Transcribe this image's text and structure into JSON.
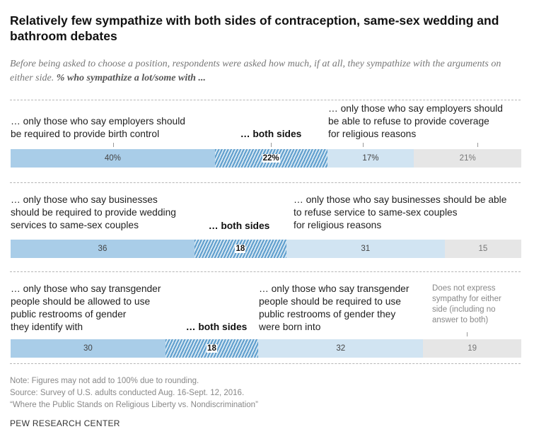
{
  "title": "Relatively few sympathize with both sides of contraception, same-sex wedding and bathroom debates",
  "subtitle_plain": "Before being asked to choose a position, respondents were asked how much, if at all, they sympathize with the arguments on either side.",
  "subtitle_bold": "% who sympathize a lot/some with ...",
  "chart_data": {
    "type": "bar",
    "stacked": true,
    "orientation": "horizontal",
    "title": "Relatively few sympathize with both sides of contraception, same-sex wedding and bathroom debates",
    "categories": [
      "contraception",
      "same-sex wedding",
      "bathroom"
    ],
    "series": [
      {
        "name": "only those who say employers should be required to provide birth control / businesses should be required to provide wedding services / transgender people should be allowed to use restroom of gender they identify with",
        "values": [
          40,
          36,
          30
        ]
      },
      {
        "name": "both sides",
        "values": [
          22,
          18,
          18
        ]
      },
      {
        "name": "only those who say employers should be able to refuse / businesses should be able to refuse / transgender people should be required to use restroom of gender they were born into",
        "values": [
          17,
          31,
          32
        ]
      },
      {
        "name": "Does not express sympathy for either side",
        "values": [
          21,
          15,
          19
        ]
      }
    ],
    "value_labels": [
      [
        "40%",
        "22%",
        "17%",
        "21%"
      ],
      [
        "36",
        "18",
        "31",
        "15"
      ],
      [
        "30",
        "18",
        "32",
        "19"
      ]
    ],
    "xlim": [
      0,
      100
    ],
    "grid": false,
    "legend": "none"
  },
  "rows": [
    {
      "left_label": "… only those who say employers should\nbe required to provide birth control",
      "both_label": "… both sides",
      "right_label": "… only those who say employers should\nbe able to refuse to provide coverage\nfor religious reasons"
    },
    {
      "left_label": "… only those who say businesses\nshould be required to provide wedding\nservices to same-sex couples",
      "both_label": "… both sides",
      "right_label": "… only those who say businesses should be able\nto refuse service to same-sex couples\nfor religious reasons"
    },
    {
      "left_label": "… only those who say transgender\npeople should be allowed to use\npublic restrooms of gender\nthey identify with",
      "both_label": "… both sides",
      "right_label": "… only those who say transgender\npeople should be required to use\npublic restrooms of gender they\nwere born into"
    }
  ],
  "none_label": "Does not express\nsympathy for either\nside (including no\nanswer to both)",
  "footer": {
    "note": "Note: Figures may not add to 100% due to rounding.",
    "source": "Source: Survey of U.S. adults conducted Aug. 16-Sept. 12, 2016.",
    "report": "“Where the Public Stands on Religious Liberty vs. Nondiscrimination”"
  },
  "brand": "PEW RESEARCH CENTER",
  "colors": {
    "left": "#a9cde8",
    "both": "#5d9dcc",
    "right": "#d1e4f2",
    "none": "#e6e6e6"
  }
}
